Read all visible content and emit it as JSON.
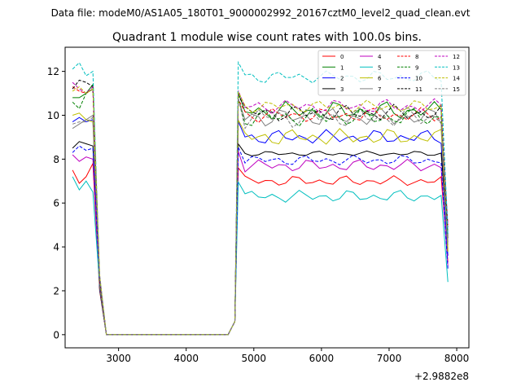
{
  "header": {
    "data_file_text": "Data file: modeM0/AS1A05_180T01_9000002992_20167cztM0_level2_quad_clean.evt"
  },
  "chart_data": {
    "type": "line",
    "title": "Quadrant 1 module wise count rates with 100.0s bins.",
    "xlabel": "",
    "ylabel": "",
    "x_offset_text": "+2.9882e8",
    "xlim": [
      2210,
      8180
    ],
    "ylim": [
      -0.6,
      13.1
    ],
    "x_ticks": [
      3000,
      4000,
      5000,
      6000,
      7000,
      8000
    ],
    "x_tick_labels": [
      "3000",
      "4000",
      "5000",
      "6000",
      "7000",
      "8000"
    ],
    "y_ticks": [
      0,
      2,
      4,
      6,
      8,
      10,
      12
    ],
    "y_tick_labels": [
      "0",
      "2",
      "4",
      "6",
      "8",
      "10",
      "12"
    ],
    "legend_location": "upper-right",
    "legend_columns": 4,
    "time_bins": {
      "pre_start": 2320,
      "pre_step": 100,
      "pre_count": 4,
      "drop_points": [
        [
          2720,
          2.0
        ],
        [
          2820,
          0.0
        ]
      ],
      "zero_end": 4620,
      "rise_points": [
        [
          4720,
          0.6
        ]
      ],
      "main_start": 4770,
      "main_step": 100,
      "main_count": 31,
      "end_x": 7870
    },
    "series": [
      {
        "name": "0",
        "color": "#ff0000",
        "dash": "solid",
        "pre": [
          7.5,
          6.9,
          7.2,
          7.8
        ],
        "level": 7.0,
        "noise": 0.25,
        "end": 3.3
      },
      {
        "name": "1",
        "color": "#008000",
        "dash": "solid",
        "pre": [
          10.8,
          10.8,
          11.0,
          11.4
        ],
        "level": 10.2,
        "noise": 0.45,
        "end": 3.8
      },
      {
        "name": "2",
        "color": "#0000ff",
        "dash": "solid",
        "pre": [
          9.7,
          9.9,
          9.7,
          9.8
        ],
        "level": 9.0,
        "noise": 0.35,
        "end": 3.6
      },
      {
        "name": "3",
        "color": "#000000",
        "dash": "solid",
        "pre": [
          8.5,
          8.8,
          8.7,
          8.6
        ],
        "level": 8.25,
        "noise": 0.12,
        "end": 4.4
      },
      {
        "name": "4",
        "color": "#bf00bf",
        "dash": "solid",
        "pre": [
          8.2,
          7.9,
          8.1,
          8.0
        ],
        "level": 7.7,
        "noise": 0.3,
        "end": 3.1
      },
      {
        "name": "5",
        "color": "#00bfbf",
        "dash": "solid",
        "pre": [
          7.2,
          6.6,
          7.0,
          6.5
        ],
        "level": 6.3,
        "noise": 0.3,
        "end": 2.4
      },
      {
        "name": "6",
        "color": "#bfbf00",
        "dash": "solid",
        "pre": [
          10.0,
          10.1,
          9.8,
          9.7
        ],
        "level": 9.0,
        "noise": 0.4,
        "end": 3.9
      },
      {
        "name": "7",
        "color": "#808080",
        "dash": "solid",
        "pre": [
          9.4,
          9.6,
          9.8,
          10.0
        ],
        "level": 9.9,
        "noise": 0.45,
        "end": 4.2
      },
      {
        "name": "8",
        "color": "#ff0000",
        "dash": "dashed",
        "pre": [
          11.3,
          11.1,
          11.0,
          11.2
        ],
        "level": 10.0,
        "noise": 0.35,
        "end": 5.0
      },
      {
        "name": "9",
        "color": "#008000",
        "dash": "dashed",
        "pre": [
          10.6,
          10.3,
          11.0,
          11.2
        ],
        "level": 9.9,
        "noise": 0.45,
        "end": 4.6
      },
      {
        "name": "10",
        "color": "#0000ff",
        "dash": "dashed",
        "pre": [
          8.3,
          8.6,
          8.4,
          8.5
        ],
        "level": 7.95,
        "noise": 0.25,
        "end": 3.0
      },
      {
        "name": "11",
        "color": "#000000",
        "dash": "dashed",
        "pre": [
          11.2,
          11.6,
          11.5,
          11.3
        ],
        "level": 10.1,
        "noise": 0.4,
        "end": 4.5
      },
      {
        "name": "12",
        "color": "#bf00bf",
        "dash": "dashed",
        "pre": [
          11.5,
          11.2,
          11.0,
          11.3
        ],
        "level": 10.4,
        "noise": 0.35,
        "end": 4.9
      },
      {
        "name": "13",
        "color": "#00bfbf",
        "dash": "dashed",
        "pre": [
          12.1,
          12.4,
          11.8,
          12.0
        ],
        "level": 11.75,
        "noise": 0.3,
        "end": 4.6
      },
      {
        "name": "14",
        "color": "#bfbf00",
        "dash": "dashed",
        "pre": [
          11.1,
          11.3,
          11.0,
          11.2
        ],
        "level": 10.4,
        "noise": 0.3,
        "end": 3.7
      },
      {
        "name": "15",
        "color": "#808080",
        "dash": "dashed",
        "pre": [
          9.6,
          9.7,
          9.7,
          9.9
        ],
        "level": 9.9,
        "noise": 0.5,
        "end": 4.1
      }
    ]
  }
}
